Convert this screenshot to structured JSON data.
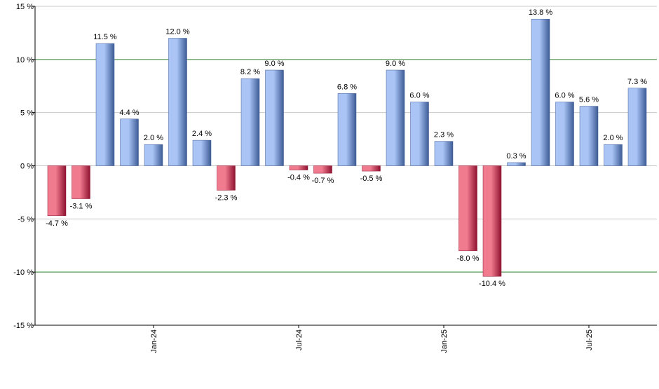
{
  "chart_data": {
    "type": "bar",
    "title": "",
    "xlabel": "",
    "ylabel": "",
    "ylim": [
      -15,
      15
    ],
    "yticks": [
      {
        "value": 15,
        "label": "15 %"
      },
      {
        "value": 10,
        "label": "10 %"
      },
      {
        "value": 5,
        "label": "5 %"
      },
      {
        "value": 0,
        "label": "0 %"
      },
      {
        "value": -5,
        "label": "-5 %"
      },
      {
        "value": -10,
        "label": "-10 %"
      },
      {
        "value": -15,
        "label": "-15 %"
      }
    ],
    "highlight_gridlines": [
      10,
      -10
    ],
    "grid": true,
    "xtick_labels": [
      {
        "label": "Jan-24",
        "bar_index": 4
      },
      {
        "label": "Jul-24",
        "bar_index": 10
      },
      {
        "label": "Jan-25",
        "bar_index": 16
      },
      {
        "label": "Jul-25",
        "bar_index": 22
      }
    ],
    "values": [
      -4.7,
      -3.1,
      11.5,
      4.4,
      2.0,
      12.0,
      2.4,
      -2.3,
      8.2,
      9.0,
      -0.4,
      -0.7,
      6.8,
      -0.5,
      9.0,
      6.0,
      2.3,
      -8.0,
      -10.4,
      0.3,
      13.8,
      6.0,
      5.6,
      2.0,
      7.3
    ],
    "data_labels": [
      "-4.7 %",
      "-3.1 %",
      "11.5 %",
      "4.4 %",
      "2.0 %",
      "12.0 %",
      "2.4 %",
      "-2.3 %",
      "8.2 %",
      "9.0 %",
      "-0.4 %",
      "-0.7 %",
      "6.8 %",
      "-0.5 %",
      "9.0 %",
      "6.0 %",
      "2.3 %",
      "-8.0 %",
      "-10.4 %",
      "0.3 %",
      "13.8 %",
      "6.0 %",
      "5.6 %",
      "2.0 %",
      "7.3 %"
    ],
    "colors": {
      "positive_light": "#a9c4f5",
      "positive_dark": "#3d5b96",
      "negative_light": "#f07a8e",
      "negative_dark": "#8f1230",
      "gridline": "#c8c8c8",
      "highlight_gridline": "#2e7d2e",
      "axis": "#000000",
      "label_text": "#000000"
    }
  }
}
